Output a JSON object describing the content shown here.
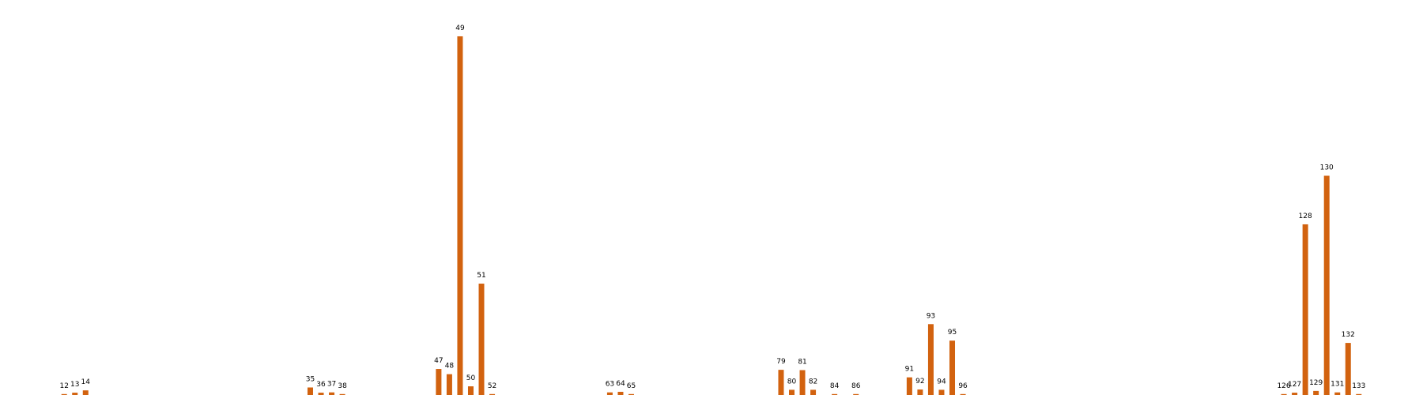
{
  "chart_data": {
    "type": "bar",
    "title": "",
    "xlabel": "",
    "ylabel": "",
    "grid": false,
    "legend": "none",
    "bar_color": "#d2620f",
    "x": [
      12,
      13,
      14,
      35,
      36,
      37,
      38,
      47,
      48,
      49,
      50,
      51,
      52,
      63,
      64,
      65,
      79,
      80,
      81,
      82,
      84,
      86,
      91,
      92,
      93,
      94,
      95,
      96,
      126,
      127,
      128,
      129,
      130,
      131,
      132,
      133
    ],
    "labels": [
      "12",
      "13",
      "14",
      "35",
      "36",
      "37",
      "38",
      "47",
      "48",
      "49",
      "50",
      "51",
      "52",
      "63",
      "64",
      "65",
      "79",
      "80",
      "81",
      "82",
      "84",
      "86",
      "91",
      "92",
      "93",
      "94",
      "95",
      "96",
      "126",
      "127",
      "128",
      "129",
      "130",
      "131",
      "132",
      "133"
    ],
    "values": [
      0.3,
      0.8,
      1.6,
      2.6,
      0.8,
      0.9,
      0.3,
      9.0,
      7.2,
      124.0,
      3.0,
      38.5,
      0.3,
      0.9,
      1.1,
      0.3,
      8.7,
      1.8,
      8.6,
      1.8,
      0.3,
      0.3,
      6.1,
      1.9,
      24.5,
      1.8,
      18.8,
      0.3,
      0.3,
      0.8,
      59.0,
      1.4,
      75.8,
      0.9,
      18.0,
      0.3
    ],
    "xlim": [
      6,
      139
    ],
    "ylim": [
      0,
      130
    ]
  }
}
